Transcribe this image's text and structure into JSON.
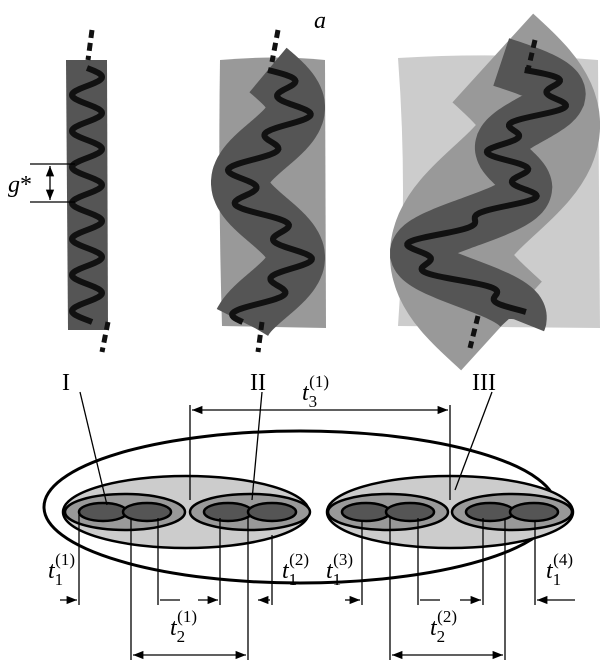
{
  "panel_label": "a",
  "blob_label": {
    "base": "g",
    "mark": "*"
  },
  "levels": [
    "I",
    "II",
    "III"
  ],
  "times": [
    {
      "base": "t",
      "sub": "3",
      "sup": "(1)"
    },
    {
      "base": "t",
      "sub": "1",
      "sup": "(1)"
    },
    {
      "base": "t",
      "sub": "1",
      "sup": "(2)"
    },
    {
      "base": "t",
      "sub": "1",
      "sup": "(3)"
    },
    {
      "base": "t",
      "sub": "1",
      "sup": "(4)"
    },
    {
      "base": "t",
      "sub": "2",
      "sup": "(1)"
    },
    {
      "base": "t",
      "sub": "2",
      "sup": "(2)"
    }
  ]
}
